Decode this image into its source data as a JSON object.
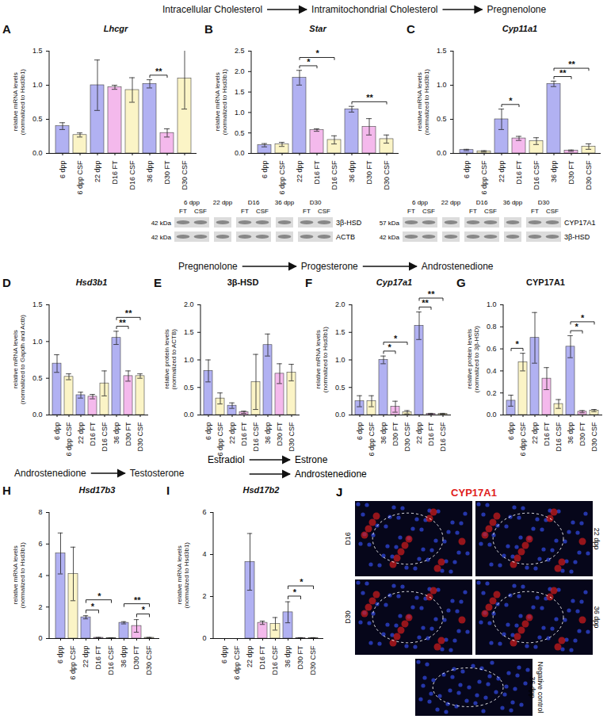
{
  "chart_data": [
    {
      "panel": "A",
      "type": "bar",
      "title": "Lhcgr",
      "y_label": [
        "relative mRNA levels",
        "(normalized to Hsd3b1)"
      ],
      "categories": [
        "6 dpp",
        "6 dpp CSF",
        "22 dpp",
        "D16 FT",
        "D16 CSF",
        "36 dpp",
        "D30 FT",
        "D30 CSF"
      ],
      "values": [
        0.4,
        0.27,
        1.0,
        0.97,
        0.93,
        1.02,
        0.3,
        1.1
      ],
      "errors": [
        0.05,
        0.03,
        0.37,
        0.03,
        0.18,
        0.06,
        0.06,
        0.45
      ],
      "colors": [
        "#b1b1f2",
        "#fbf4c6",
        "#b1b1f2",
        "#f4b9ec",
        "#fbf4c6",
        "#b1b1f2",
        "#f4b9ec",
        "#fbf4c6"
      ],
      "ylim": [
        0,
        1.5
      ],
      "yticks": [
        {
          "value": 0,
          "label": "0.0"
        },
        0.5,
        {
          "value": 1,
          "label": "1.0"
        },
        1.5
      ],
      "annotations": [
        {
          "from": 5,
          "to": 6,
          "label": "**"
        }
      ]
    },
    {
      "panel": "B",
      "type": "bar",
      "title": "Star",
      "y_label": [
        "relative mRNA levels",
        "(normalized to Hsd3b1)"
      ],
      "categories": [
        "6 dpp",
        "6 dpp CSF",
        "22 dpp",
        "D16 FT",
        "D16 CSF",
        "36 dpp",
        "D30 FT",
        "D30 CSF"
      ],
      "values": [
        0.2,
        0.22,
        1.85,
        0.57,
        0.33,
        1.08,
        0.65,
        0.35
      ],
      "errors": [
        0.04,
        0.05,
        0.18,
        0.03,
        0.1,
        0.07,
        0.2,
        0.1
      ],
      "colors": [
        "#b1b1f2",
        "#fbf4c6",
        "#b1b1f2",
        "#f4b9ec",
        "#fbf4c6",
        "#b1b1f2",
        "#f4b9ec",
        "#fbf4c6"
      ],
      "ylim": [
        0,
        2.5
      ],
      "yticks": [
        {
          "value": 0,
          "label": "0.0"
        },
        0.5,
        {
          "value": 1,
          "label": "1.0"
        },
        1.5,
        {
          "value": 2,
          "label": "2.0"
        },
        2.5
      ],
      "annotations": [
        {
          "from": 2,
          "to": 3,
          "label": "*"
        },
        {
          "from": 2,
          "to": 4,
          "label": "*"
        },
        {
          "from": 5,
          "to": 7,
          "label": "**"
        }
      ]
    },
    {
      "panel": "C",
      "type": "bar",
      "title": "Cyp11a1",
      "y_label": [
        "relative mRNA levels",
        "(normalized to Hsd3b1)"
      ],
      "categories": [
        "6 dpp",
        "6 dpp CSF",
        "22 dpp",
        "D16 FT",
        "D16 CSF",
        "36 dpp",
        "D30 FT",
        "D30 CSF"
      ],
      "values": [
        0.05,
        0.03,
        0.5,
        0.22,
        0.18,
        1.02,
        0.04,
        0.1
      ],
      "errors": [
        0.01,
        0.01,
        0.15,
        0.03,
        0.05,
        0.04,
        0.01,
        0.04
      ],
      "colors": [
        "#b1b1f2",
        "#fbf4c6",
        "#b1b1f2",
        "#f4b9ec",
        "#fbf4c6",
        "#b1b1f2",
        "#f4b9ec",
        "#fbf4c6"
      ],
      "ylim": [
        0,
        1.5
      ],
      "yticks": [
        {
          "value": 0,
          "label": "0.0"
        },
        0.5,
        {
          "value": 1,
          "label": "1.0"
        },
        1.5
      ],
      "annotations": [
        {
          "from": 2,
          "to": 3,
          "label": "*"
        },
        {
          "from": 5,
          "to": 6,
          "label": "**"
        },
        {
          "from": 5,
          "to": 7,
          "label": "**"
        }
      ]
    },
    {
      "panel": "D",
      "type": "bar",
      "title": "Hsd3b1",
      "y_label": [
        "relative mRNA levels",
        "(normalized to Gapdh and Actb)"
      ],
      "categories": [
        "6 dpp",
        "6 dpp CSF",
        "22 dpp",
        "D16 FT",
        "D16 CSF",
        "36 dpp",
        "D30 FT",
        "D30 CSF"
      ],
      "values": [
        0.7,
        0.52,
        0.27,
        0.25,
        0.43,
        1.05,
        0.53,
        0.53
      ],
      "errors": [
        0.12,
        0.04,
        0.04,
        0.03,
        0.17,
        0.09,
        0.07,
        0.03
      ],
      "colors": [
        "#b1b1f2",
        "#fbf4c6",
        "#b1b1f2",
        "#f4b9ec",
        "#fbf4c6",
        "#b1b1f2",
        "#f4b9ec",
        "#fbf4c6"
      ],
      "ylim": [
        0,
        1.5
      ],
      "yticks": [
        {
          "value": 0,
          "label": "0.0"
        },
        0.5,
        {
          "value": 1,
          "label": "1.0"
        },
        1.5
      ],
      "annotations": [
        {
          "from": 5,
          "to": 6,
          "label": "**"
        },
        {
          "from": 5,
          "to": 7,
          "label": "**"
        }
      ]
    },
    {
      "panel": "E",
      "type": "bar",
      "title": "3β-HSD",
      "y_label": [
        "relative protein levels",
        "(normalized to ACTB)"
      ],
      "categories": [
        "6 dpp",
        "6 dpp CSF",
        "22 dpp",
        "D16 FT",
        "D16 CSF",
        "36 dpp",
        "D30 FT",
        "D30 CSF"
      ],
      "values": [
        0.8,
        0.3,
        0.17,
        0.05,
        0.6,
        1.27,
        0.75,
        0.77
      ],
      "errors": [
        0.2,
        0.1,
        0.05,
        0.02,
        0.5,
        0.2,
        0.18,
        0.15
      ],
      "colors": [
        "#b1b1f2",
        "#fbf4c6",
        "#b1b1f2",
        "#f4b9ec",
        "#fbf4c6",
        "#b1b1f2",
        "#f4b9ec",
        "#fbf4c6"
      ],
      "ylim": [
        0,
        2
      ],
      "yticks": [
        {
          "value": 0,
          "label": "0.0"
        },
        0.5,
        {
          "value": 1,
          "label": "1.0"
        },
        1.5,
        {
          "value": 2,
          "label": "2.0"
        }
      ],
      "annotations": []
    },
    {
      "panel": "F",
      "type": "bar",
      "title": "Cyp17a1",
      "y_label": [
        "relative mRNA levels",
        "(normalized to Hsd3b1)"
      ],
      "categories": [
        "6 dpp",
        "6 dpp CSF",
        "36 dpp",
        "D30 FT",
        "D30 CSF",
        "22 dpp",
        "D16 FT",
        "D16 CSF"
      ],
      "values": [
        0.25,
        0.25,
        1.0,
        0.15,
        0.05,
        1.62,
        0.02,
        0.02
      ],
      "errors": [
        0.1,
        0.1,
        0.07,
        0.1,
        0.03,
        0.25,
        0.01,
        0.01
      ],
      "colors": [
        "#b1b1f2",
        "#fbf4c6",
        "#b1b1f2",
        "#f4b9ec",
        "#fbf4c6",
        "#b1b1f2",
        "#f4b9ec",
        "#fbf4c6"
      ],
      "ylim": [
        0,
        2
      ],
      "yticks": [
        {
          "value": 0,
          "label": "0.0"
        },
        0.5,
        {
          "value": 1,
          "label": "1.0"
        },
        1.5,
        {
          "value": 2,
          "label": "2.0"
        }
      ],
      "annotations": [
        {
          "from": 2,
          "to": 3,
          "label": "*"
        },
        {
          "from": 2,
          "to": 4,
          "label": "*"
        },
        {
          "from": 5,
          "to": 6,
          "label": "**"
        },
        {
          "from": 5,
          "to": 7,
          "label": "**"
        }
      ]
    },
    {
      "panel": "G",
      "type": "bar",
      "title": "CYP17A1",
      "y_label": [
        "relative protein levels",
        "(normalized to 3β-HSD)"
      ],
      "categories": [
        "6 dpp",
        "6 dpp CSF",
        "22 dpp",
        "D16 FT",
        "D16 CSF",
        "36 dpp",
        "D30 FT",
        "D30 CSF"
      ],
      "values": [
        0.13,
        0.48,
        0.7,
        0.33,
        0.1,
        0.62,
        0.03,
        0.04
      ],
      "errors": [
        0.05,
        0.08,
        0.23,
        0.1,
        0.04,
        0.1,
        0.01,
        0.01
      ],
      "colors": [
        "#b1b1f2",
        "#fbf4c6",
        "#b1b1f2",
        "#f4b9ec",
        "#fbf4c6",
        "#b1b1f2",
        "#f4b9ec",
        "#fbf4c6"
      ],
      "ylim": [
        0,
        1
      ],
      "yticks": [
        {
          "value": 0,
          "label": "0.0"
        },
        0.2,
        0.4,
        0.6,
        0.8,
        {
          "value": 1,
          "label": "1.0"
        }
      ],
      "annotations": [
        {
          "from": 0,
          "to": 1,
          "label": "*"
        },
        {
          "from": 5,
          "to": 6,
          "label": "*"
        },
        {
          "from": 5,
          "to": 7,
          "label": "*"
        }
      ]
    },
    {
      "panel": "H",
      "type": "bar",
      "title": "Hsd17b3",
      "y_label": [
        "relative mRNA levels",
        "(normalized to Hsd3b1)"
      ],
      "categories": [
        "6 dpp",
        "6 dpp CSF",
        "22 dpp",
        "D16 FT",
        "D16 CSF",
        "36 dpp",
        "D30 FT",
        "D30 CSF"
      ],
      "values": [
        5.4,
        4.1,
        1.35,
        0.05,
        0.03,
        1.0,
        0.8,
        0.05
      ],
      "errors": [
        1.3,
        1.7,
        0.1,
        0.02,
        0.01,
        0.07,
        0.4,
        0.02
      ],
      "colors": [
        "#b1b1f2",
        "#fbf4c6",
        "#b1b1f2",
        "#f4b9ec",
        "#fbf4c6",
        "#b1b1f2",
        "#f4b9ec",
        "#fbf4c6"
      ],
      "ylim": [
        0,
        8
      ],
      "yticks": [
        0,
        2,
        4,
        6,
        8
      ],
      "annotations": [
        {
          "from": 2,
          "to": 3,
          "label": "*"
        },
        {
          "from": 2,
          "to": 4,
          "label": "*"
        },
        {
          "from": 5,
          "to": 7,
          "label": "**"
        },
        {
          "from": 6,
          "to": 7,
          "label": "*"
        }
      ]
    },
    {
      "panel": "I",
      "type": "bar",
      "title": "Hsd17b2",
      "y_label": [
        "relative mRNA levels",
        "(normalized to Hsd3b1)"
      ],
      "categories": [
        "6 dpp",
        "6 dpp CSF",
        "22 dpp",
        "D16 FT",
        "D16 CSF",
        "36 dpp",
        "D30 FT",
        "D30 CSF"
      ],
      "values": [
        0,
        0,
        3.65,
        0.75,
        0.7,
        1.25,
        0.03,
        0.03
      ],
      "errors": [
        0,
        0,
        1.35,
        0.08,
        0.3,
        0.5,
        0.01,
        0.01
      ],
      "colors": [
        "#b1b1f2",
        "#fbf4c6",
        "#b1b1f2",
        "#f4b9ec",
        "#fbf4c6",
        "#b1b1f2",
        "#f4b9ec",
        "#fbf4c6"
      ],
      "ylim": [
        0,
        6
      ],
      "yticks": [
        0,
        2,
        4,
        6
      ],
      "annotations": [
        {
          "from": 5,
          "to": 6,
          "label": "*"
        },
        {
          "from": 5,
          "to": 7,
          "label": "*"
        }
      ]
    }
  ],
  "pathways": [
    {
      "steps": [
        "Intracellular Cholesterol",
        "Intramitochondrial Cholesterol",
        "Pregnenolone"
      ]
    },
    {
      "steps": [
        "Pregnenolone",
        "Progesterone",
        "Androstenedione"
      ]
    },
    {
      "steps": [
        "Androstenedione",
        "Testosterone"
      ]
    },
    {
      "source": "Estradiol",
      "targets": [
        "Estrone",
        "Androstenedione"
      ]
    }
  ],
  "blots": [
    {
      "lanes": [
        {
          "label": "6 dpp",
          "sub": [
            "FT",
            "CSF"
          ]
        },
        {
          "label": "22 dpp"
        },
        {
          "label": "D16",
          "sub": [
            "FT",
            "CSF"
          ]
        },
        {
          "label": "36 dpp"
        },
        {
          "label": "D30",
          "sub": [
            "FT",
            "CSF"
          ]
        }
      ],
      "rows": [
        {
          "kda": "42 kDa",
          "name": "3β-HSD"
        },
        {
          "kda": "42 kDa",
          "name": "ACTB"
        }
      ]
    },
    {
      "lanes": [
        {
          "label": "6 dpp",
          "sub": [
            "FT",
            "CSF"
          ]
        },
        {
          "label": "22 dpp"
        },
        {
          "label": "D16",
          "sub": [
            "FT",
            "CSF"
          ]
        },
        {
          "label": "36 dpp"
        },
        {
          "label": "D30",
          "sub": [
            "FT",
            "CSF"
          ]
        }
      ],
      "rows": [
        {
          "kda": "57 kDa",
          "name": "CYP17A1"
        },
        {
          "kda": "42 kDa",
          "name": "3β-HSD"
        }
      ]
    }
  ],
  "panel_j": {
    "panel": "J",
    "title": "CYP17A1",
    "images": [
      "D16",
      "22 dpp",
      "D30",
      "36 dpp",
      "Negative control 36 dpp"
    ]
  }
}
